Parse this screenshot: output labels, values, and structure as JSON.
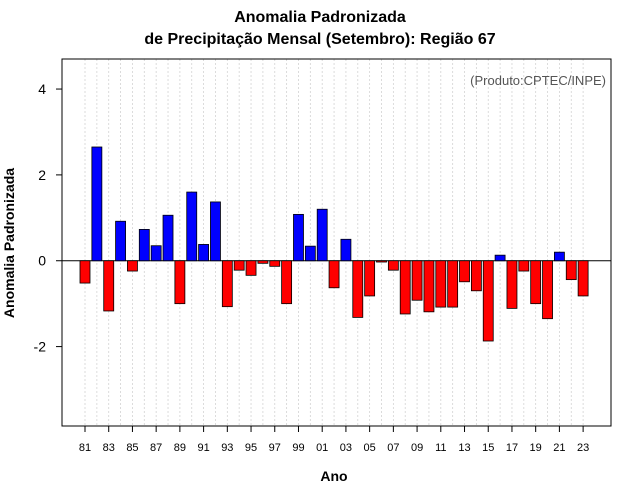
{
  "chart_data": {
    "type": "bar",
    "title": "Anomalia Padronizada",
    "subtitle": "de Precipitação Mensal (Setembro): Região 67",
    "xlabel": "Ano",
    "ylabel": "Anomalia Padronizada",
    "credit": "(Produto:CPTEC/INPE)",
    "ylim": [
      -3.85,
      4.7
    ],
    "yticks": [
      -2,
      0,
      2,
      4
    ],
    "ytick_labels": [
      "-2",
      "0",
      "2",
      "4"
    ],
    "categories": [
      "81",
      "82",
      "83",
      "84",
      "85",
      "86",
      "87",
      "88",
      "89",
      "90",
      "91",
      "92",
      "93",
      "94",
      "95",
      "96",
      "97",
      "98",
      "99",
      "00",
      "01",
      "02",
      "03",
      "04",
      "05",
      "06",
      "07",
      "08",
      "09",
      "10",
      "11",
      "12",
      "13",
      "14",
      "15",
      "16",
      "17",
      "18",
      "19",
      "20",
      "21",
      "22",
      "23"
    ],
    "xtick_labels": [
      "81",
      "83",
      "85",
      "87",
      "89",
      "91",
      "93",
      "95",
      "97",
      "99",
      "01",
      "03",
      "05",
      "07",
      "09",
      "11",
      "13",
      "15",
      "17",
      "19",
      "21",
      "23"
    ],
    "values": [
      -0.52,
      2.65,
      -1.17,
      0.92,
      -0.24,
      0.73,
      0.35,
      1.06,
      -1.0,
      1.6,
      0.38,
      1.37,
      -1.07,
      -0.22,
      -0.34,
      -0.06,
      -0.13,
      -1.0,
      1.08,
      0.34,
      1.2,
      -0.63,
      0.5,
      -1.32,
      -0.82,
      -0.03,
      -0.22,
      -1.24,
      -0.92,
      -1.19,
      -1.08,
      -1.08,
      -0.49,
      -0.7,
      -1.87,
      0.13,
      -1.11,
      -0.24,
      -1.0,
      -1.35,
      0.2,
      -0.44,
      -0.82
    ],
    "colors": {
      "positive": "#0000ff",
      "negative": "#ff0000",
      "grid": "#d3d3d3"
    }
  }
}
